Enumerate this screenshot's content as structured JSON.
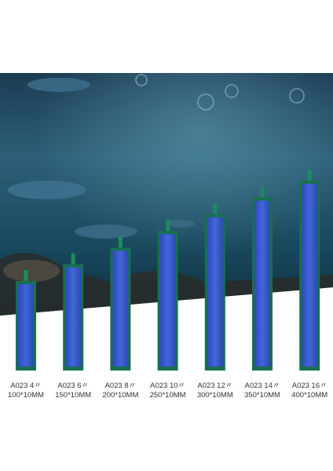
{
  "products": [
    {
      "model": "A023 4〃",
      "size": "100*10MM"
    },
    {
      "model": "A023 6〃",
      "size": "150*10MM"
    },
    {
      "model": "A023 8〃",
      "size": "200*10MM"
    },
    {
      "model": "A023 10〃",
      "size": "250*10MM"
    },
    {
      "model": "A023 12〃",
      "size": "300*10MM"
    },
    {
      "model": "A023 14〃",
      "size": "350*10MM"
    },
    {
      "model": "A023 16〃",
      "size": "400*10MM"
    }
  ]
}
